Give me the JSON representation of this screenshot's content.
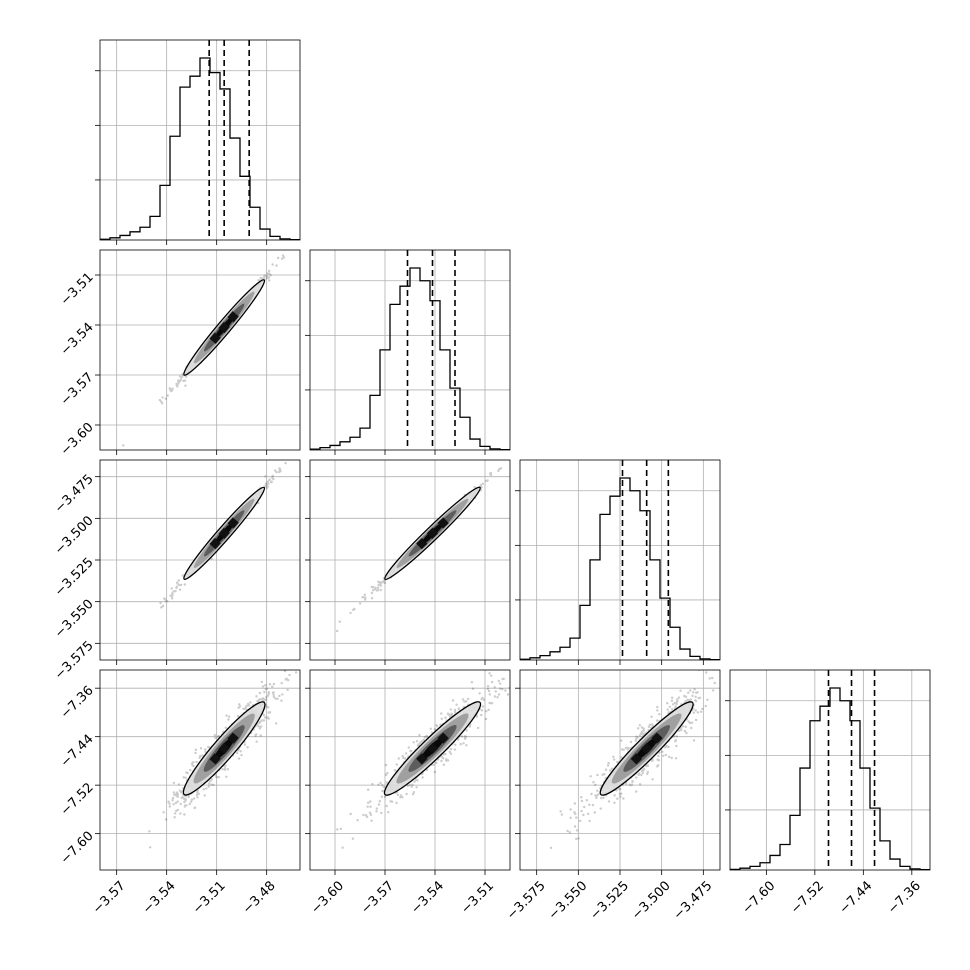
{
  "chart_data": {
    "type": "corner",
    "variables": [
      {
        "range": [
          -3.58,
          -3.46
        ],
        "ticks": [
          -3.57,
          -3.54,
          -3.51,
          -3.48
        ],
        "tick_labels": [
          "−3.57",
          "−3.54",
          "−3.51",
          "−3.48"
        ],
        "quantiles": [
          -3.5145,
          -3.5055,
          -3.4905
        ],
        "hist_bins": [
          0.004,
          0.012,
          0.025,
          0.045,
          0.07,
          0.13,
          0.3,
          0.57,
          0.84,
          0.9,
          1.0,
          0.92,
          0.83,
          0.56,
          0.35,
          0.18,
          0.06,
          0.02,
          0.006,
          0.002
        ]
      },
      {
        "range": [
          -3.615,
          -3.495
        ],
        "ticks": [
          -3.6,
          -3.57,
          -3.54,
          -3.51
        ],
        "tick_labels": [
          "−3.60",
          "−3.57",
          "−3.54",
          "−3.51"
        ],
        "quantiles": [
          -3.5565,
          -3.5415,
          -3.528
        ],
        "hist_bins": [
          0.005,
          0.013,
          0.025,
          0.045,
          0.07,
          0.12,
          0.3,
          0.55,
          0.8,
          0.9,
          1.0,
          0.93,
          0.82,
          0.55,
          0.34,
          0.18,
          0.06,
          0.02,
          0.006,
          0.002
        ]
      },
      {
        "range": [
          -3.585,
          -3.465
        ],
        "ticks": [
          -3.575,
          -3.55,
          -3.525,
          -3.5,
          -3.475
        ],
        "tick_labels": [
          "−3.575",
          "−3.550",
          "−3.525",
          "−3.500",
          "−3.475"
        ],
        "quantiles": [
          -3.5235,
          -3.509,
          -3.496
        ],
        "hist_bins": [
          0.004,
          0.012,
          0.024,
          0.045,
          0.07,
          0.12,
          0.3,
          0.55,
          0.8,
          0.9,
          1.0,
          0.93,
          0.82,
          0.55,
          0.34,
          0.18,
          0.06,
          0.02,
          0.006,
          0.002
        ]
      },
      {
        "range": [
          -7.66,
          -7.33
        ],
        "ticks": [
          -7.6,
          -7.52,
          -7.44,
          -7.36
        ],
        "tick_labels": [
          "−7.60",
          "−7.52",
          "−7.44",
          "−7.36"
        ],
        "quantiles": [
          -7.4975,
          -7.4595,
          -7.4215
        ],
        "hist_bins": [
          0.003,
          0.01,
          0.02,
          0.04,
          0.08,
          0.14,
          0.3,
          0.56,
          0.82,
          0.9,
          1.0,
          0.93,
          0.82,
          0.56,
          0.34,
          0.16,
          0.06,
          0.02,
          0.006,
          0.002
        ]
      }
    ],
    "grid": true,
    "hist_style": "step",
    "quantile_line_style": "dashed",
    "scatter_color": "#333333",
    "contour_colors": [
      "#000000",
      "#555555",
      "#999999",
      "#dddddd"
    ]
  }
}
